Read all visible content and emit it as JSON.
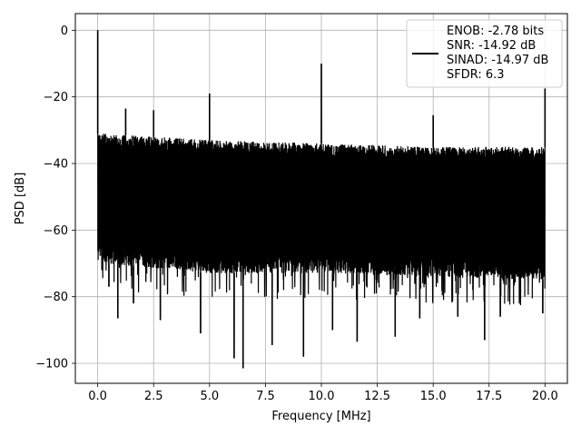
{
  "chart_data": {
    "type": "line",
    "xlabel": "Frequency [MHz]",
    "ylabel": "PSD [dB]",
    "xlim": [
      -1.0,
      21.0
    ],
    "ylim": [
      -106.0,
      5.0
    ],
    "xticks": [
      0.0,
      2.5,
      5.0,
      7.5,
      10.0,
      12.5,
      15.0,
      17.5,
      20.0
    ],
    "xtick_labels": [
      "0.0",
      "2.5",
      "5.0",
      "7.5",
      "10.0",
      "12.5",
      "15.0",
      "17.5",
      "20.0"
    ],
    "yticks": [
      0,
      -20,
      -40,
      -60,
      -80,
      -100
    ],
    "ytick_labels": [
      "0",
      "−20",
      "−40",
      "−60",
      "−80",
      "−100"
    ],
    "grid": true,
    "legend_position": "top-right",
    "legend_entries": [
      "ENOB: -2.78 bits",
      "SNR: -14.92 dB",
      "SINAD: -14.97 dB",
      "SFDR: 6.3"
    ],
    "series": [
      {
        "color": "#000000",
        "noise_floor_top_db": [
          -31,
          -33,
          -34,
          -35,
          -35
        ],
        "noise_floor_bottom_db": [
          -70,
          -73,
          -73,
          -74,
          -75
        ],
        "noise_floor_top_x_mhz": [
          0.2,
          5.0,
          10.0,
          15.0,
          20.0
        ],
        "spurs": [
          {
            "x": 0.0,
            "y": 0.0
          },
          {
            "x": 1.25,
            "y": -23.5
          },
          {
            "x": 2.5,
            "y": -24.0
          },
          {
            "x": 5.0,
            "y": -19.0
          },
          {
            "x": 10.0,
            "y": -10.0
          },
          {
            "x": 15.0,
            "y": -25.5
          },
          {
            "x": 20.0,
            "y": -17.5
          }
        ],
        "dips": [
          {
            "x": 0.5,
            "y": -77.0
          },
          {
            "x": 0.9,
            "y": -86.5
          },
          {
            "x": 1.6,
            "y": -82.0
          },
          {
            "x": 2.8,
            "y": -87.0
          },
          {
            "x": 4.6,
            "y": -91.0
          },
          {
            "x": 6.1,
            "y": -98.5
          },
          {
            "x": 6.5,
            "y": -101.5
          },
          {
            "x": 7.8,
            "y": -94.5
          },
          {
            "x": 9.2,
            "y": -98.0
          },
          {
            "x": 10.5,
            "y": -90.0
          },
          {
            "x": 11.6,
            "y": -93.5
          },
          {
            "x": 13.3,
            "y": -92.0
          },
          {
            "x": 14.4,
            "y": -86.5
          },
          {
            "x": 16.1,
            "y": -86.0
          },
          {
            "x": 17.3,
            "y": -93.0
          },
          {
            "x": 18.0,
            "y": -86.0
          },
          {
            "x": 18.9,
            "y": -80.5
          },
          {
            "x": 19.9,
            "y": -85.0
          }
        ]
      }
    ]
  }
}
